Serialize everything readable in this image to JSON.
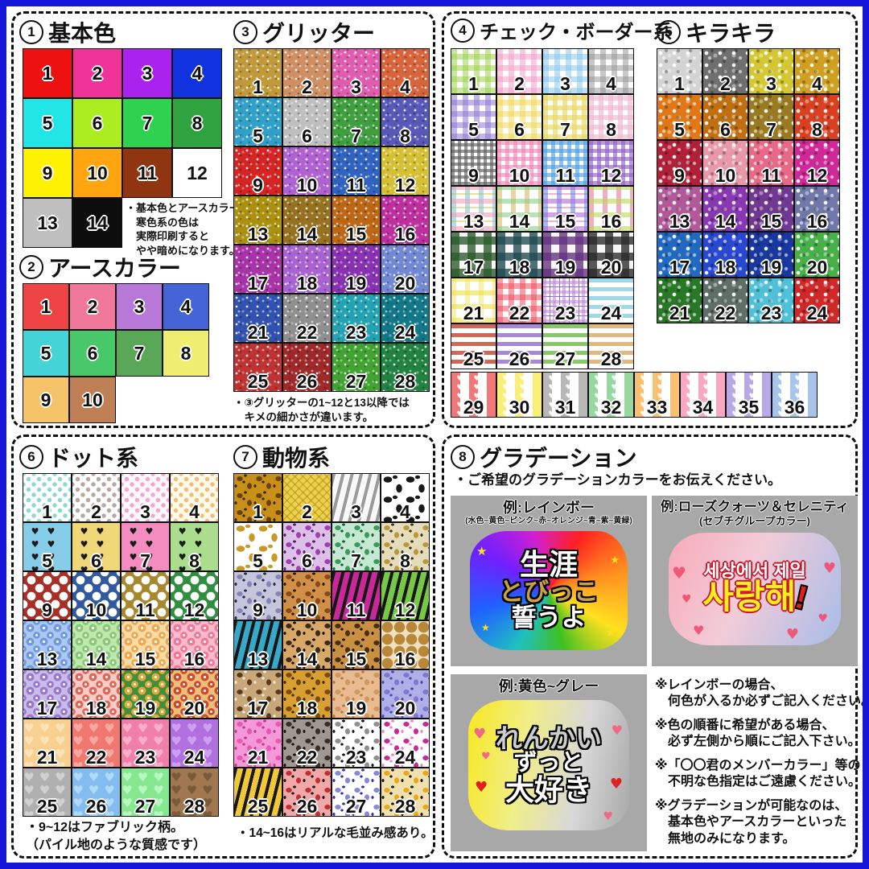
{
  "icons": {
    "heart": "♥",
    "star": "★"
  },
  "colors": {
    "frame": "#1616d8",
    "example_bg": "#a8a8a8",
    "dash": "#111111"
  },
  "sections": {
    "basic": {
      "num": "1",
      "label": "基本色",
      "note": [
        "・基本色とアースカラーの",
        "　寒色系の色は",
        "　実際印刷すると",
        "　やや暗めになります。"
      ],
      "swatches": [
        {
          "n": 1,
          "c": "#ee1111"
        },
        {
          "n": 2,
          "c": "#f03399"
        },
        {
          "n": 3,
          "c": "#aa22ee"
        },
        {
          "n": 4,
          "c": "#1133dd"
        },
        {
          "n": 5,
          "c": "#22e6e6"
        },
        {
          "n": 6,
          "c": "#aaee22"
        },
        {
          "n": 7,
          "c": "#2fd24f"
        },
        {
          "n": 8,
          "c": "#2fa33f"
        },
        {
          "n": 9,
          "c": "#fef202"
        },
        {
          "n": 10,
          "c": "#ffa50f"
        },
        {
          "n": 11,
          "c": "#8f3510"
        },
        {
          "n": 12,
          "c": "#ffffff"
        },
        {
          "n": 13,
          "c": "#bfbfbf"
        },
        {
          "n": 14,
          "c": "#0d0d0d"
        }
      ]
    },
    "earth": {
      "num": "2",
      "label": "アースカラー",
      "swatches": [
        {
          "n": 1,
          "c": "#ee4444"
        },
        {
          "n": 2,
          "c": "#f0789a"
        },
        {
          "n": 3,
          "c": "#b878d8"
        },
        {
          "n": 4,
          "c": "#4464d8"
        },
        {
          "n": 5,
          "c": "#44d4d8"
        },
        {
          "n": 6,
          "c": "#48c868"
        },
        {
          "n": 7,
          "c": "#58a858"
        },
        {
          "n": 8,
          "c": "#f0ee70"
        },
        {
          "n": 9,
          "c": "#f5c468"
        },
        {
          "n": 10,
          "c": "#c08055"
        }
      ]
    },
    "glitter": {
      "num": "3",
      "label": "グリッター",
      "note": [
        "・③グリッターの1~12と13以降では",
        "　キメの細かさが違います。"
      ],
      "swatches": [
        {
          "n": 1,
          "c": "#c09a3a"
        },
        {
          "n": 2,
          "c": "#cf8f62"
        },
        {
          "n": 3,
          "c": "#df5cae"
        },
        {
          "n": 4,
          "c": "#d8643a"
        },
        {
          "n": 5,
          "c": "#30a0c8"
        },
        {
          "n": 6,
          "c": "#bfbfbf"
        },
        {
          "n": 7,
          "c": "#3f9f3f"
        },
        {
          "n": 8,
          "c": "#5858b8"
        },
        {
          "n": 9,
          "c": "#d42424"
        },
        {
          "n": 10,
          "c": "#b062d2"
        },
        {
          "n": 11,
          "c": "#3062c0"
        },
        {
          "n": 12,
          "c": "#d4c032"
        },
        {
          "n": 13,
          "c": "#ab9010"
        },
        {
          "n": 14,
          "c": "#967120"
        },
        {
          "n": 15,
          "c": "#bd6716"
        },
        {
          "n": 16,
          "c": "#bd2f9d"
        },
        {
          "n": 17,
          "c": "#a832a8"
        },
        {
          "n": 18,
          "c": "#a862d2"
        },
        {
          "n": 19,
          "c": "#8832b2"
        },
        {
          "n": 20,
          "c": "#7288d2"
        },
        {
          "n": 21,
          "c": "#3252b2"
        },
        {
          "n": 22,
          "c": "#8f8f8f"
        },
        {
          "n": 23,
          "c": "#22a2b2"
        },
        {
          "n": 24,
          "c": "#127888"
        },
        {
          "n": 25,
          "c": "#bf3232"
        },
        {
          "n": 26,
          "c": "#9f2828"
        },
        {
          "n": 27,
          "c": "#42a232"
        },
        {
          "n": 28,
          "c": "#228242"
        }
      ]
    },
    "check": {
      "num": "4",
      "label": "チェック・ボーダー系",
      "swatches": [
        {
          "n": 1,
          "t": "gingham",
          "c": [
            "#9cd44c"
          ]
        },
        {
          "n": 2,
          "t": "gingham",
          "c": [
            "#f4a0c8"
          ]
        },
        {
          "n": 3,
          "t": "gingham",
          "c": [
            "#88c8f0"
          ]
        },
        {
          "n": 4,
          "t": "gingham",
          "c": [
            "#9a9a9a"
          ]
        },
        {
          "n": 5,
          "t": "gingham",
          "c": [
            "#8f7ad6"
          ]
        },
        {
          "n": 6,
          "t": "gingham",
          "c": [
            "#f0d858"
          ]
        },
        {
          "n": 7,
          "t": "finegrid",
          "c": [
            "#e8d860"
          ],
          "g": 6
        },
        {
          "n": 8,
          "t": "finegrid",
          "c": [
            "#f0b8d0"
          ],
          "g": 6
        },
        {
          "n": 9,
          "t": "finegrid",
          "c": [
            "#606060"
          ],
          "g": 4
        },
        {
          "n": 10,
          "t": "finegrid",
          "c": [
            "#f088b8"
          ],
          "g": 5
        },
        {
          "n": 11,
          "t": "finegrid",
          "c": [
            "#50a0e8"
          ],
          "g": 5
        },
        {
          "n": 12,
          "t": "finegrid",
          "c": [
            "#9060c8"
          ],
          "g": 5
        },
        {
          "n": 13,
          "t": "plaid",
          "c": [
            "#f0a0b8",
            "#80c8d0",
            "#e8d880"
          ]
        },
        {
          "n": 14,
          "t": "plaid",
          "c": [
            "#88d088",
            "#d8b868"
          ]
        },
        {
          "n": 15,
          "t": "plaid",
          "c": [
            "#b868d8",
            "#6888e8",
            "#f0a0c0"
          ]
        },
        {
          "n": 16,
          "t": "plaid",
          "c": [
            "#b8d858",
            "#e87898"
          ]
        },
        {
          "n": 17,
          "t": "buffalo",
          "c": [
            "#2a5a2a"
          ]
        },
        {
          "n": 18,
          "t": "buffalo",
          "c": [
            "#1f4a50"
          ]
        },
        {
          "n": 19,
          "t": "buffalo",
          "c": [
            "#64307f"
          ]
        },
        {
          "n": 20,
          "t": "buffalo",
          "c": [
            "#2a2a2a"
          ]
        },
        {
          "n": 21,
          "t": "plaid",
          "c": [
            "#f0df40",
            "#f0e878"
          ]
        },
        {
          "n": 22,
          "t": "gingham",
          "c": [
            "#f05060"
          ]
        },
        {
          "n": 23,
          "t": "tartan",
          "c": [
            "#c080d8",
            "#7858c0"
          ]
        },
        {
          "n": 24,
          "t": "hstripes",
          "c": [
            "#a0d8e8"
          ]
        },
        {
          "n": 25,
          "t": "hstripes",
          "c": [
            "#d06858"
          ]
        },
        {
          "n": 26,
          "t": "hstripes",
          "c": [
            "#a888d8"
          ]
        },
        {
          "n": 27,
          "t": "hstripes",
          "c": [
            "#88c868"
          ]
        },
        {
          "n": 28,
          "t": "hstripes",
          "c": [
            "#e0b880"
          ]
        },
        {
          "n": 29,
          "t": "heartstripe",
          "c": [
            "#f07878"
          ]
        },
        {
          "n": 30,
          "t": "heartstripe",
          "c": [
            "#f8ee78"
          ]
        },
        {
          "n": 31,
          "t": "heartstripe",
          "c": [
            "#b8b8b8"
          ]
        },
        {
          "n": 32,
          "t": "heartstripe",
          "c": [
            "#98d8a0"
          ]
        },
        {
          "n": 33,
          "t": "heartstripe",
          "c": [
            "#f8c070"
          ]
        },
        {
          "n": 34,
          "t": "heartstripe",
          "c": [
            "#f8a8c0"
          ]
        },
        {
          "n": 35,
          "t": "heartstripe",
          "c": [
            "#b8a8e8"
          ]
        },
        {
          "n": 36,
          "t": "heartstripe",
          "c": [
            "#a8c4e8"
          ]
        }
      ]
    },
    "kira": {
      "num": "5",
      "label": "キラキラ",
      "swatches": [
        {
          "n": 1,
          "c": "#d4d4d4"
        },
        {
          "n": 2,
          "c": "#6f6f6f"
        },
        {
          "n": 3,
          "c": "#d4c832"
        },
        {
          "n": 4,
          "c": "#cf9f20"
        },
        {
          "n": 5,
          "c": "#e07818"
        },
        {
          "n": 6,
          "c": "#bf6f10"
        },
        {
          "n": 7,
          "c": "#9a7a20"
        },
        {
          "n": 8,
          "c": "#d84020"
        },
        {
          "n": 9,
          "c": "#b02038"
        },
        {
          "n": 10,
          "c": "#e898a8"
        },
        {
          "n": 11,
          "c": "#e86888"
        },
        {
          "n": 12,
          "c": "#d02898"
        },
        {
          "n": 13,
          "c": "#b05898"
        },
        {
          "n": 14,
          "c": "#8838b0"
        },
        {
          "n": 15,
          "c": "#703890"
        },
        {
          "n": 16,
          "c": "#6f78a8"
        },
        {
          "n": 17,
          "c": "#2068c0"
        },
        {
          "n": 18,
          "c": "#2848d0"
        },
        {
          "n": 19,
          "c": "#1838a0"
        },
        {
          "n": 20,
          "c": "#48b048"
        },
        {
          "n": 21,
          "c": "#287828"
        },
        {
          "n": 22,
          "c": "#5f6f68"
        },
        {
          "n": 23,
          "c": "#50c0d8"
        },
        {
          "n": 24,
          "c": "#d02828"
        }
      ]
    },
    "dots": {
      "num": "6",
      "label": "ドット系",
      "note": [
        "・9~12はファブリック柄。",
        "（パイル地のような質感です）"
      ],
      "swatches": [
        {
          "n": 1,
          "t": "dots",
          "c": [
            "#ffffff",
            "#8fd8cf"
          ]
        },
        {
          "n": 2,
          "t": "dots",
          "c": [
            "#ffffff",
            "#b8a8a0"
          ]
        },
        {
          "n": 3,
          "t": "dots",
          "c": [
            "#fff8fb",
            "#f0a8d0"
          ]
        },
        {
          "n": 4,
          "t": "dots",
          "c": [
            "#fffaf0",
            "#f0c070"
          ]
        },
        {
          "n": 5,
          "t": "blackhearts",
          "c": [
            "#85cde8",
            "#1a1a1a"
          ]
        },
        {
          "n": 6,
          "t": "blackhearts",
          "c": [
            "#f0d878",
            "#1a1a1a"
          ]
        },
        {
          "n": 7,
          "t": "blackhearts",
          "c": [
            "#f48cc0",
            "#1a1a1a"
          ]
        },
        {
          "n": 8,
          "t": "blackhearts",
          "c": [
            "#aade8c",
            "#1a1a1a"
          ]
        },
        {
          "n": 9,
          "t": "dots",
          "c": [
            "#a63028",
            "#ffffff"
          ],
          "s": 5,
          "g": 20
        },
        {
          "n": 10,
          "t": "dots",
          "c": [
            "#31599f",
            "#ffffff"
          ],
          "s": 5,
          "g": 20
        },
        {
          "n": 11,
          "t": "dots",
          "c": [
            "#a8882f",
            "#ffffff"
          ],
          "s": 5,
          "g": 20
        },
        {
          "n": 12,
          "t": "dots",
          "c": [
            "#2f8f3f",
            "#ffffff"
          ],
          "s": 5,
          "g": 20
        },
        {
          "n": 13,
          "t": "flowers",
          "c": [
            "#aac8f0",
            "#6f98e0"
          ]
        },
        {
          "n": 14,
          "t": "flowers",
          "c": [
            "#bfe8af",
            "#88c878"
          ]
        },
        {
          "n": 15,
          "t": "flowers",
          "c": [
            "#f8dca8",
            "#f0a850"
          ]
        },
        {
          "n": 16,
          "t": "flowers",
          "c": [
            "#f8bccb",
            "#f07898"
          ]
        },
        {
          "n": 17,
          "t": "flowers",
          "c": [
            "#cabce8",
            "#9878d0"
          ]
        },
        {
          "n": 18,
          "t": "flowers",
          "c": [
            "#f8ccc8",
            "#e06858"
          ]
        },
        {
          "n": 19,
          "t": "flowers",
          "c": [
            "#3f8f3f",
            "#e8a838"
          ]
        },
        {
          "n": 20,
          "t": "flowers",
          "c": [
            "#e8c078",
            "#d04830"
          ]
        },
        {
          "n": 21,
          "t": "hearts",
          "c": [
            "#f8d08f",
            "#fae3b8"
          ]
        },
        {
          "n": 22,
          "t": "hearts",
          "c": [
            "#f07870",
            "#f8a8a0"
          ]
        },
        {
          "n": 23,
          "t": "hearts",
          "c": [
            "#f080a8",
            "#f8b0c8"
          ]
        },
        {
          "n": 24,
          "t": "hearts",
          "c": [
            "#b070e0",
            "#cf9ff0"
          ]
        },
        {
          "n": 25,
          "t": "hearts",
          "c": [
            "#b0b0b0",
            "#d0d0d0"
          ]
        },
        {
          "n": 26,
          "t": "hearts",
          "c": [
            "#85bcf0",
            "#b0d8f8"
          ]
        },
        {
          "n": 27,
          "t": "hearts",
          "c": [
            "#85e88f",
            "#b8f8c0"
          ]
        },
        {
          "n": 28,
          "t": "hearts",
          "c": [
            "#a07850",
            "#7a5a3a"
          ]
        }
      ]
    },
    "animal": {
      "num": "7",
      "label": "動物系",
      "note": [
        "・14~16はリアルな毛並み感あり。"
      ],
      "swatches": [
        {
          "n": 1,
          "t": "leopard",
          "c": [
            "#c89018",
            "#6a4210",
            "#3a2808"
          ]
        },
        {
          "n": 2,
          "t": "croc",
          "c": [
            "#f0d048",
            "#a08820"
          ]
        },
        {
          "n": 3,
          "t": "zebra",
          "c": [
            "#f8f8f8",
            "#9a9a9a"
          ]
        },
        {
          "n": 4,
          "t": "cow",
          "c": [
            "#ffffff",
            "#181818"
          ]
        },
        {
          "n": 5,
          "t": "cow",
          "c": [
            "#ffffff",
            "#c89828"
          ]
        },
        {
          "n": 6,
          "t": "leopard",
          "c": [
            "#ddc0e8",
            "#a040b0",
            "#50206a"
          ]
        },
        {
          "n": 7,
          "t": "leopard",
          "c": [
            "#c5e8d2",
            "#3a9a5a",
            "#1a5a32"
          ]
        },
        {
          "n": 8,
          "t": "leopard",
          "c": [
            "#e5dcbc",
            "#b89838",
            "#3a3018"
          ]
        },
        {
          "n": 9,
          "t": "leopard",
          "c": [
            "#c5c5dc",
            "#8585b5",
            "#28284a"
          ]
        },
        {
          "n": 10,
          "t": "leopard",
          "c": [
            "#d09048",
            "#8a4a18",
            "#2a1808"
          ]
        },
        {
          "n": 11,
          "t": "zebra",
          "c": [
            "#c82898",
            "#181818"
          ]
        },
        {
          "n": 12,
          "t": "zebra",
          "c": [
            "#78c848",
            "#181818"
          ]
        },
        {
          "n": 13,
          "t": "zebra",
          "c": [
            "#38a8c8",
            "#181818"
          ]
        },
        {
          "n": 14,
          "t": "leopard",
          "c": [
            "#d8a868",
            "#3a2a18",
            "#181008"
          ]
        },
        {
          "n": 15,
          "t": "leopard",
          "c": [
            "#c89040",
            "#4a3010",
            "#201408"
          ]
        },
        {
          "n": 16,
          "t": "giraffe",
          "c": [
            "#b88838",
            "#f0e0c0"
          ]
        },
        {
          "n": 17,
          "t": "leopard",
          "c": [
            "#c8a878",
            "#5a3a20",
            "#f0e8d8"
          ]
        },
        {
          "n": 18,
          "t": "leopard",
          "c": [
            "#d8a030",
            "#7a4a10",
            "#3a2808"
          ]
        },
        {
          "n": 19,
          "t": "leopard",
          "c": [
            "#e8bc90",
            "#d09860",
            "#b87838"
          ]
        },
        {
          "n": 20,
          "t": "leopard",
          "c": [
            "#b0b0e8",
            "#8078d0",
            "#5048a0"
          ]
        },
        {
          "n": 21,
          "t": "leopard",
          "c": [
            "#f598d8",
            "#e858b0",
            "#c03890"
          ]
        },
        {
          "n": 22,
          "t": "leopard",
          "c": [
            "#a09890",
            "#383028",
            "#181410"
          ]
        },
        {
          "n": 23,
          "t": "leopard",
          "c": [
            "#ffffff",
            "#909090",
            "#181818"
          ]
        },
        {
          "n": 24,
          "t": "leopard",
          "c": [
            "#ffffff",
            "#c82898",
            "#f080c0"
          ]
        },
        {
          "n": 25,
          "t": "tiger",
          "c": [
            "#f0c838",
            "#181818"
          ]
        },
        {
          "n": 26,
          "t": "leopard",
          "c": [
            "#f0a8a8",
            "#c03030",
            "#181818"
          ]
        },
        {
          "n": 27,
          "t": "leopard",
          "c": [
            "#ffffff",
            "#8888d8",
            "#3030b0"
          ]
        },
        {
          "n": 28,
          "t": "leopard",
          "c": [
            "#f0e0b0",
            "#e8a818",
            "#181818"
          ]
        }
      ]
    },
    "grad": {
      "num": "8",
      "label": "グラデーション",
      "intro": "・ご希望のグラデーションカラーをお伝えください。",
      "examples": [
        {
          "title": "例:レインボー",
          "subtitle": "(水色~黄色~ピンク~赤~オレンジ~青~紫~黄緑)",
          "lines": [
            "生涯",
            "とびっこ",
            "誓うよ"
          ]
        },
        {
          "title": "例:ローズクォーツ＆セレニティ",
          "subtitle": "(セブチグループカラー)",
          "lines": [
            "세상에서 제일",
            "사랑해"
          ],
          "accent": "!"
        },
        {
          "title": "例:黄色~グレー",
          "lines": [
            "れんかい",
            "ずっと",
            "大好き"
          ]
        }
      ],
      "notes": [
        [
          "※レインボーの場合、",
          "　何色が入るか必ずご記入ください。"
        ],
        [
          "※色の順番に希望がある場合、",
          "　必ず左側から順にご記入下さい。"
        ],
        [
          "※「〇〇君のメンバーカラー」等の",
          "　不明な色指定はご遠慮ください。"
        ],
        [
          "※グラデーションが可能なのは、",
          "　基本色やアースカラーといった",
          "　無地のみになります。"
        ]
      ]
    }
  }
}
